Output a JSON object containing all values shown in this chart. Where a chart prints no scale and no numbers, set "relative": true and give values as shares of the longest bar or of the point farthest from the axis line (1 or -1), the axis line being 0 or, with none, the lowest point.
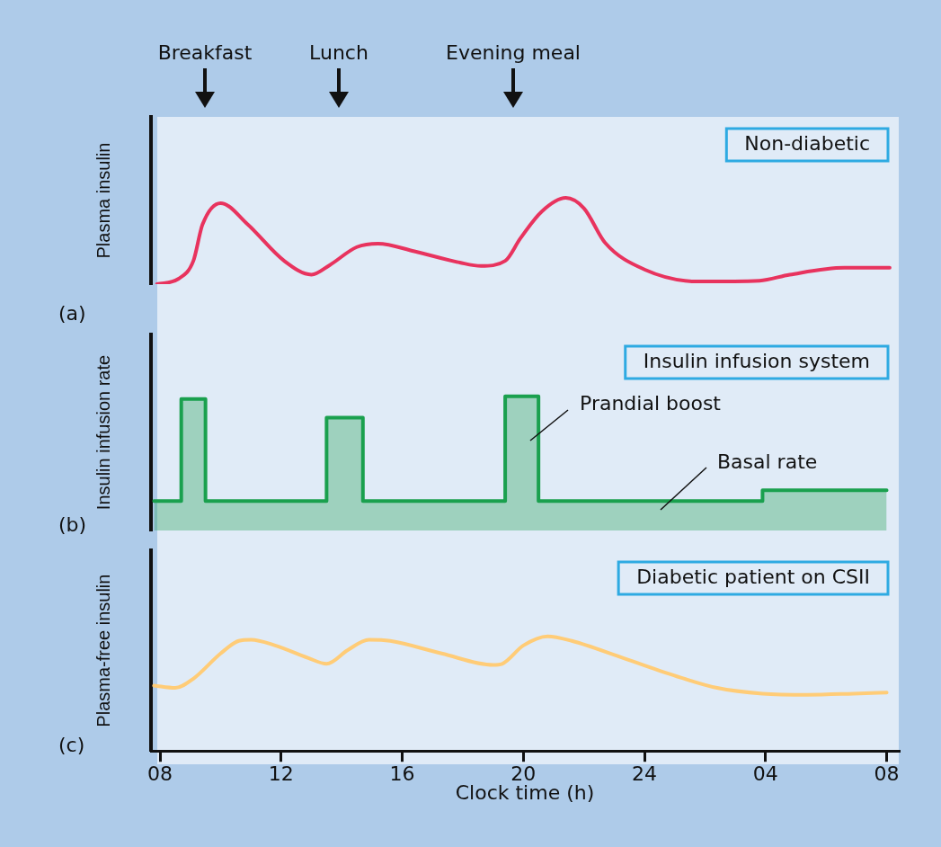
{
  "chart_data": [
    {
      "type": "line",
      "title": "Non-diabetic",
      "ylabel": "Plasma insulin",
      "relative": true,
      "legend": false,
      "grid": false,
      "marker": "none",
      "tick_labels": false,
      "xlim": [
        "--01-01T07:42",
        "--01-02T08:24"
      ],
      "annotations": [
        "Breakfast",
        "Lunch",
        "Evening meal",
        "(a)"
      ],
      "series": [
        {
          "color": "#e8335e",
          "x": [
            "--01-01T07:54",
            "--01-01T08:36",
            "--01-01T09:06",
            "--01-01T09:24",
            "--01-01T10:00",
            "--01-01T10:54",
            "--01-01T12:06",
            "--01-01T13:00",
            "--01-01T13:36",
            "--01-01T14:30",
            "--01-01T15:12",
            "--01-01T16:24",
            "--01-01T17:54",
            "--01-01T18:36",
            "--01-01T19:24",
            "--01-01T19:54",
            "--01-01T20:36",
            "--01-01T21:24",
            "--01-01T22:00",
            "--01-01T22:42",
            "--01-02T00:00",
            "--01-02T01:48",
            "--01-02T03:48",
            "--01-02T04:48",
            "--01-02T06:36",
            "--01-02T08:06"
          ],
          "values": [
            0,
            0.06,
            0.27,
            0.69,
            0.94,
            0.69,
            0.27,
            0.11,
            0.22,
            0.43,
            0.47,
            0.38,
            0.25,
            0.21,
            0.27,
            0.53,
            0.84,
            1,
            0.88,
            0.48,
            0.17,
            0.03,
            0.04,
            0.11,
            0.19,
            0.19
          ]
        }
      ]
    },
    {
      "type": "area",
      "title": "Insulin infusion system",
      "ylabel": "Insulin infusion rate",
      "relative": true,
      "legend": false,
      "grid": false,
      "marker": "none",
      "tick_labels": false,
      "xlim": [
        "--01-01T07:42",
        "--01-02T08:24"
      ],
      "annotations": [
        "Prandial boost",
        "Basal rate",
        "(b)"
      ],
      "series": [
        {
          "color": "#1aa04e",
          "x": [
            "--01-01T07:48",
            "--01-01T08:42",
            "--01-01T08:42",
            "--01-01T09:30",
            "--01-01T09:30",
            "--01-01T13:30",
            "--01-01T13:30",
            "--01-01T14:42",
            "--01-01T14:42",
            "--01-01T19:24",
            "--01-01T19:24",
            "--01-01T20:30",
            "--01-01T20:30",
            "--01-02T03:54",
            "--01-02T03:54",
            "--01-02T08:00"
          ],
          "values": [
            0.22,
            0.22,
            0.98,
            0.98,
            0.22,
            0.22,
            0.84,
            0.84,
            0.22,
            0.22,
            1,
            1,
            0.22,
            0.22,
            0.3,
            0.3
          ]
        }
      ]
    },
    {
      "type": "line",
      "title": "Diabetic patient on CSII",
      "ylabel": "Plasma-free insulin",
      "xlabel": "Clock time (h)",
      "relative": true,
      "legend": false,
      "grid": false,
      "marker": "none",
      "tick_labels": "x",
      "xlim": [
        "--01-01T07:42",
        "--01-02T08:24"
      ],
      "xticks": [
        {
          "value": "--01-01T08:00",
          "label": "08"
        },
        {
          "value": "--01-01T12:00",
          "label": "12"
        },
        {
          "value": "--01-01T16:00",
          "label": "16"
        },
        {
          "value": "--01-01T20:00",
          "label": "20"
        },
        {
          "value": "--01-02T00:00",
          "label": "24"
        },
        {
          "value": "--01-02T04:00",
          "label": "04"
        },
        {
          "value": "--01-02T08:00",
          "label": "08"
        }
      ],
      "annotations": [
        "(c)"
      ],
      "series": [
        {
          "color": "#ffcc77",
          "x": [
            "--01-01T07:48",
            "--01-01T08:30",
            "--01-01T09:06",
            "--01-01T10:00",
            "--01-01T10:36",
            "--01-01T11:00",
            "--01-01T11:48",
            "--01-01T12:54",
            "--01-01T13:30",
            "--01-01T14:12",
            "--01-01T14:54",
            "--01-01T15:36",
            "--01-01T17:18",
            "--01-01T19:00",
            "--01-01T19:18",
            "--01-01T20:00",
            "--01-01T20:48",
            "--01-01T21:36",
            "--01-01T23:18",
            "--01-02T01:12",
            "--01-02T02:24",
            "--01-02T03:54",
            "--01-02T05:24",
            "--01-02T06:54",
            "--01-02T08:00"
          ],
          "values": [
            0.57,
            0.55,
            0.63,
            0.85,
            0.96,
            0.97,
            0.92,
            0.81,
            0.76,
            0.88,
            0.97,
            0.96,
            0.85,
            0.75,
            0.76,
            0.92,
            1,
            0.96,
            0.81,
            0.64,
            0.55,
            0.5,
            0.49,
            0.5,
            0.51
          ]
        }
      ]
    }
  ]
}
